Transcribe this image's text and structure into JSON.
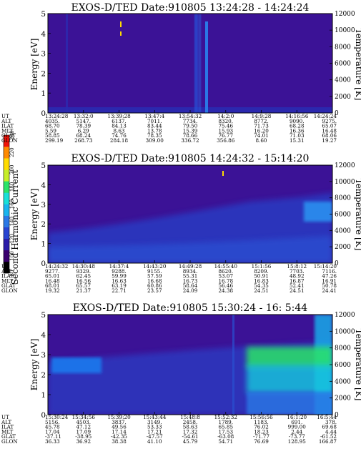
{
  "colorbar": {
    "label": "Second Harmonic Current",
    "ticks": [
      80,
      100,
      120,
      140,
      160,
      180,
      200,
      220,
      240
    ],
    "colors": [
      "#000000",
      "#3a006e",
      "#2b1ca8",
      "#2844d2",
      "#2a78e6",
      "#19b4ee",
      "#18e0d8",
      "#2ae468",
      "#c6ee28",
      "#ffdc00",
      "#ff8a00",
      "#f0140a"
    ]
  },
  "panels": [
    {
      "title": "EXOS-D/TED   Date:910805   13:24:28 - 14:24:24",
      "ylabel": "Energy [eV]",
      "y2label": "Temperature [K]",
      "ylim": [
        0,
        5
      ],
      "yticks": [
        "0",
        "1",
        "2",
        "3",
        "4",
        "5"
      ],
      "y2lim": [
        0,
        12000
      ],
      "y2ticks": [
        "0",
        "2000",
        "4000",
        "6000",
        "8000",
        "10000",
        "12000"
      ],
      "table": {
        "labels": [
          "UT",
          "ALT",
          "ILAT",
          "MLT",
          "GLAT",
          "GLON"
        ],
        "columns": [
          [
            "13:24:28",
            "4035.",
            "68.70",
            "5.59",
            "58.85",
            "299.19"
          ],
          [
            "13:32:0",
            "5147.",
            "78.39",
            "6.29",
            "68.24",
            "268.73"
          ],
          [
            "13:39:28",
            "6137.",
            "84.13",
            "8.63",
            "74.76",
            "284.18"
          ],
          [
            "13:47:4",
            "7011.",
            "83.44",
            "13.78",
            "78.35",
            "309.00"
          ],
          [
            "13:54:32",
            "7734.",
            "79.50",
            "15.39",
            "78.66",
            "336.72"
          ],
          [
            "14:2:0",
            "8320.",
            "75.46",
            "15.93",
            "76.77",
            "356.86"
          ],
          [
            "14:9:28",
            "8772.",
            "71.73",
            "16.20",
            "74.01",
            "8.60"
          ],
          [
            "14:16:56",
            "9090.",
            "68.28",
            "16.36",
            "71.03",
            "15.31"
          ],
          [
            "14:24:24",
            "9275.",
            "65.07",
            "16.48",
            "68.06",
            "19.27"
          ]
        ]
      }
    },
    {
      "title": "EXOS-D/TED   Date:910805   14:24:32 - 15:14:20",
      "ylabel": "Energy [eV]",
      "y2label": "Temperature [K]",
      "ylim": [
        0,
        5
      ],
      "yticks": [
        "0",
        "1",
        "2",
        "3",
        "4",
        "5"
      ],
      "y2lim": [
        0,
        12000
      ],
      "y2ticks": [
        "0",
        "2000",
        "4000",
        "6000",
        "8000",
        "10000",
        "12000"
      ],
      "table": {
        "labels": [
          "UT",
          "ALT",
          "ILAT",
          "MLT",
          "GLAT",
          "GLON"
        ],
        "columns": [
          [
            "14:24:32",
            "9277.",
            "65.01",
            "16.48",
            "68.01",
            "19.32"
          ],
          [
            "14:30:48",
            "9329.",
            "62.45",
            "16.56",
            "65.57",
            "21.37"
          ],
          [
            "14:37:4",
            "9288.",
            "59.99",
            "16.63",
            "63.19",
            "22.71"
          ],
          [
            "14:43:20",
            "9155.",
            "57.59",
            "16.68",
            "60.86",
            "23.57"
          ],
          [
            "14:49:28",
            "8934.",
            "55.31",
            "16.73",
            "58.64",
            "24.09"
          ],
          [
            "14:55:40",
            "8620.",
            "53.07",
            "16.78",
            "56.46",
            "24.38"
          ],
          [
            "15:1:56",
            "8209.",
            "50.91",
            "16.83",
            "54.35",
            "24.51"
          ],
          [
            "15:8:12",
            "7703.",
            "48.92",
            "16.87",
            "52.41",
            "24.51"
          ],
          [
            "15:14:20",
            "7116.",
            "47.26",
            "16.91",
            "50.78",
            "24.41"
          ]
        ]
      }
    },
    {
      "title": "EXOS-D/TED   Date:910805   15:30:24 - 16: 5:44",
      "ylabel": "Energy [eV]",
      "y2label": "Temperature [K]",
      "ylim": [
        0,
        5
      ],
      "yticks": [
        "0",
        "1",
        "2",
        "3",
        "4",
        "5"
      ],
      "y2lim": [
        0,
        12000
      ],
      "y2ticks": [
        "0",
        "2000",
        "4000",
        "6000",
        "8000",
        "10000",
        "12000"
      ],
      "table": {
        "labels": [
          "UT",
          "ALT",
          "ILAT",
          "MLT",
          "GLAT",
          "GLON"
        ],
        "columns": [
          [
            "15:30:24",
            "5156.",
            "45.78",
            "17.04",
            "-37.11",
            "36.33"
          ],
          [
            "15:34:56",
            "4503.",
            "47.12",
            "17.09",
            "-38.95",
            "36.92"
          ],
          [
            "15:39:20",
            "3837.",
            "49.56",
            "17.14",
            "-42.35",
            "38.38"
          ],
          [
            "15:43:44",
            "3149.",
            "53.33",
            "17.21",
            "-47.57",
            "41.10"
          ],
          [
            "15:48:8",
            "2458.",
            "58.63",
            "17.32",
            "-54.61",
            "45.79"
          ],
          [
            "15:52:32",
            "1789.",
            "65.85",
            "17.53",
            "-63.08",
            "54.71"
          ],
          [
            "15:56:56",
            "1183.",
            "76.02",
            "18.23",
            "-71.77",
            "76.69"
          ],
          [
            "16:1:20",
            "691.",
            "999.00",
            "2.44",
            "-73.77",
            "128.95"
          ],
          [
            "16:5:44",
            "378.",
            "69.68",
            "4.44",
            "-61.52",
            "166.87"
          ]
        ]
      }
    }
  ]
}
